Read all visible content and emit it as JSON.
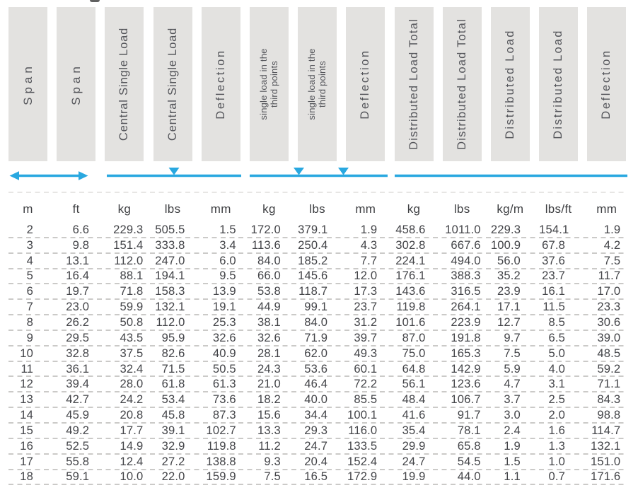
{
  "colors": {
    "accent": "#29A8E0",
    "header_box": "#E3E2E0",
    "header_text": "#54555A",
    "body_text": "#434448",
    "separator": "#CBCAC8"
  },
  "table": {
    "headers": [
      {
        "id": "span-m",
        "lines": [
          "Span"
        ]
      },
      {
        "id": "span-ft",
        "lines": [
          "Span"
        ]
      },
      {
        "id": "central-single-load-kg",
        "lines": [
          "Central Single Load"
        ]
      },
      {
        "id": "central-single-load-lbs",
        "lines": [
          "Central Single Load"
        ]
      },
      {
        "id": "deflection-central",
        "lines": [
          "Deflection"
        ]
      },
      {
        "id": "third-point-load-kg",
        "lines": [
          "single load in the",
          "third points"
        ]
      },
      {
        "id": "third-point-load-lbs",
        "lines": [
          "single load in the",
          "third points"
        ]
      },
      {
        "id": "deflection-third-point",
        "lines": [
          "Deflection"
        ]
      },
      {
        "id": "distributed-load-total-kg",
        "lines": [
          "Distributed Load Total"
        ]
      },
      {
        "id": "distributed-load-total-lbs",
        "lines": [
          "Distributed Load Total"
        ]
      },
      {
        "id": "distributed-load-kg-m",
        "lines": [
          "Distributed Load"
        ]
      },
      {
        "id": "distributed-load-lbs-ft",
        "lines": [
          "Distributed Load"
        ]
      },
      {
        "id": "deflection-distributed",
        "lines": [
          "Deflection"
        ]
      }
    ],
    "units": [
      "m",
      "ft",
      "kg",
      "lbs",
      "mm",
      "kg",
      "lbs",
      "mm",
      "kg",
      "lbs",
      "kg/m",
      "lbs/ft",
      "mm"
    ],
    "rows": [
      [
        "2",
        "6.6",
        "229.3",
        "505.5",
        "1.5",
        "172.0",
        "379.1",
        "1.9",
        "458.6",
        "1011.0",
        "229.3",
        "154.1",
        "1.9"
      ],
      [
        "3",
        "9.8",
        "151.4",
        "333.8",
        "3.4",
        "113.6",
        "250.4",
        "4.3",
        "302.8",
        "667.6",
        "100.9",
        "67.8",
        "4.2"
      ],
      [
        "4",
        "13.1",
        "112.0",
        "247.0",
        "6.0",
        "84.0",
        "185.2",
        "7.7",
        "224.1",
        "494.0",
        "56.0",
        "37.6",
        "7.5"
      ],
      [
        "5",
        "16.4",
        "88.1",
        "194.1",
        "9.5",
        "66.0",
        "145.6",
        "12.0",
        "176.1",
        "388.3",
        "35.2",
        "23.7",
        "11.7"
      ],
      [
        "6",
        "19.7",
        "71.8",
        "158.3",
        "13.9",
        "53.8",
        "118.7",
        "17.3",
        "143.6",
        "316.5",
        "23.9",
        "16.1",
        "17.0"
      ],
      [
        "7",
        "23.0",
        "59.9",
        "132.1",
        "19.1",
        "44.9",
        "99.1",
        "23.7",
        "119.8",
        "264.1",
        "17.1",
        "11.5",
        "23.3"
      ],
      [
        "8",
        "26.2",
        "50.8",
        "112.0",
        "25.3",
        "38.1",
        "84.0",
        "31.2",
        "101.6",
        "223.9",
        "12.7",
        "8.5",
        "30.6"
      ],
      [
        "9",
        "29.5",
        "43.5",
        "95.9",
        "32.6",
        "32.6",
        "71.9",
        "39.7",
        "87.0",
        "191.8",
        "9.7",
        "6.5",
        "39.0"
      ],
      [
        "10",
        "32.8",
        "37.5",
        "82.6",
        "40.9",
        "28.1",
        "62.0",
        "49.3",
        "75.0",
        "165.3",
        "7.5",
        "5.0",
        "48.5"
      ],
      [
        "11",
        "36.1",
        "32.4",
        "71.5",
        "50.5",
        "24.3",
        "53.6",
        "60.1",
        "64.8",
        "142.9",
        "5.9",
        "4.0",
        "59.2"
      ],
      [
        "12",
        "39.4",
        "28.0",
        "61.8",
        "61.3",
        "21.0",
        "46.4",
        "72.2",
        "56.1",
        "123.6",
        "4.7",
        "3.1",
        "71.1"
      ],
      [
        "13",
        "42.7",
        "24.2",
        "53.4",
        "73.6",
        "18.2",
        "40.0",
        "85.5",
        "48.4",
        "106.7",
        "3.7",
        "2.5",
        "84.3"
      ],
      [
        "14",
        "45.9",
        "20.8",
        "45.8",
        "87.3",
        "15.6",
        "34.4",
        "100.1",
        "41.6",
        "91.7",
        "3.0",
        "2.0",
        "98.8"
      ],
      [
        "15",
        "49.2",
        "17.7",
        "39.1",
        "102.7",
        "13.3",
        "29.3",
        "116.0",
        "35.4",
        "78.1",
        "2.4",
        "1.6",
        "114.7"
      ],
      [
        "16",
        "52.5",
        "14.9",
        "32.9",
        "119.8",
        "11.2",
        "24.7",
        "133.5",
        "29.9",
        "65.8",
        "1.9",
        "1.3",
        "132.1"
      ],
      [
        "17",
        "55.8",
        "12.4",
        "27.2",
        "138.8",
        "9.3",
        "20.4",
        "152.4",
        "24.7",
        "54.5",
        "1.5",
        "1.0",
        "151.0"
      ],
      [
        "18",
        "59.1",
        "10.0",
        "22.0",
        "159.9",
        "7.5",
        "16.5",
        "172.9",
        "19.9",
        "44.0",
        "1.1",
        "0.7",
        "171.6"
      ]
    ]
  }
}
